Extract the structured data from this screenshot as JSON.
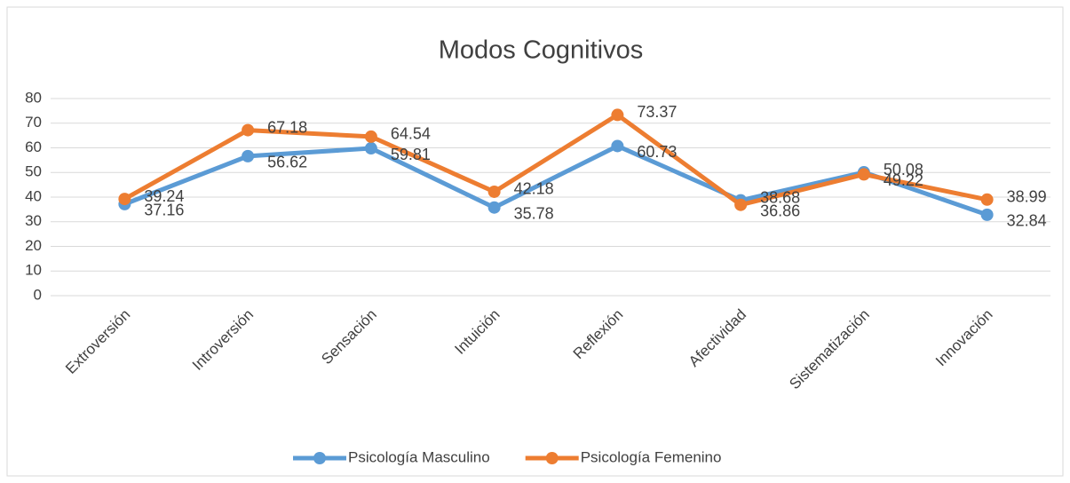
{
  "chart_data": {
    "type": "line",
    "title": "Modos Cognitivos",
    "categories": [
      "Extroversión",
      "Introversión",
      "Sensación",
      "Intuición",
      "Reflexión",
      "Afectividad",
      "Sistematización",
      "Innovación"
    ],
    "series": [
      {
        "name": "Psicología Masculino",
        "color": "#5b9bd5",
        "values": [
          37.16,
          56.62,
          59.81,
          35.78,
          60.73,
          38.68,
          50.08,
          32.84
        ]
      },
      {
        "name": "Psicología Femenino",
        "color": "#ed7d31",
        "values": [
          39.24,
          67.18,
          64.54,
          42.18,
          73.37,
          36.86,
          49.22,
          38.99
        ]
      }
    ],
    "ylim": [
      0,
      80
    ],
    "yticks": [
      0,
      10,
      20,
      30,
      40,
      50,
      60,
      70,
      80
    ],
    "grid": true,
    "legend": "bottom"
  }
}
